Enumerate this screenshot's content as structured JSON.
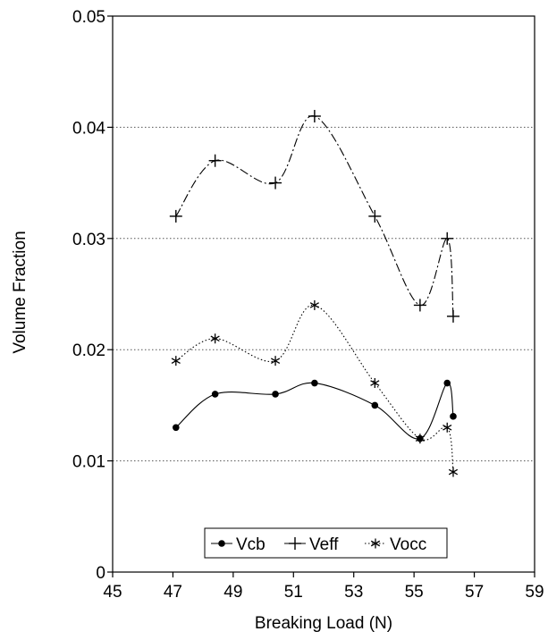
{
  "chart_data": {
    "type": "line",
    "title": "",
    "xlabel": "Breaking Load (N)",
    "ylabel": "Volume Fraction",
    "xlim": [
      45,
      59
    ],
    "ylim": [
      0,
      0.05
    ],
    "xticks": [
      "45",
      "47",
      "49",
      "51",
      "53",
      "55",
      "57",
      "59"
    ],
    "yticks": [
      "0",
      "0.01",
      "0.02",
      "0.03",
      "0.04",
      "0.05"
    ],
    "grid": "horizontal dotted",
    "legend_position": "bottom-center",
    "series": [
      {
        "name": "Vcb",
        "marker": "dot",
        "line": "solid",
        "color": "#000000",
        "x": [
          47.1,
          48.4,
          50.4,
          51.7,
          53.7,
          55.2,
          56.1,
          56.3
        ],
        "y": [
          0.013,
          0.016,
          0.016,
          0.017,
          0.015,
          0.012,
          0.017,
          0.014
        ]
      },
      {
        "name": "Veff",
        "marker": "plus",
        "line": "dash-dot",
        "color": "#000000",
        "x": [
          47.1,
          48.4,
          50.4,
          51.7,
          53.7,
          55.2,
          56.1,
          56.3
        ],
        "y": [
          0.032,
          0.037,
          0.035,
          0.041,
          0.032,
          0.024,
          0.03,
          0.023
        ]
      },
      {
        "name": "Vocc",
        "marker": "star",
        "line": "dotted",
        "color": "#000000",
        "x": [
          47.1,
          48.4,
          50.4,
          51.7,
          53.7,
          55.2,
          56.1,
          56.3
        ],
        "y": [
          0.019,
          0.021,
          0.019,
          0.024,
          0.017,
          0.012,
          0.013,
          0.009
        ]
      }
    ]
  }
}
